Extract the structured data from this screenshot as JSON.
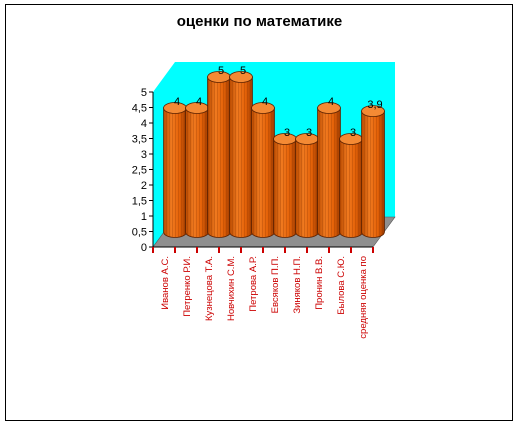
{
  "chart_data": {
    "type": "bar",
    "title": "оценки по математике",
    "categories": [
      "Иванов А.С.",
      "Петренко Р.И.",
      "Кузнецова Т.А.",
      "Новчихин С.М.",
      "Петрова А.Р.",
      "Евсяков П.П.",
      "Зиняков Н.П.",
      "Пронин В.В.",
      "Былова С.Ю.",
      "средняя оценка по"
    ],
    "values": [
      4,
      4,
      5,
      5,
      4,
      3,
      3,
      4,
      3,
      3.9
    ],
    "data_labels": [
      "4",
      "4",
      "5",
      "5",
      "4",
      "3",
      "3",
      "4",
      "3",
      "3,9"
    ],
    "y_ticks": [
      "0",
      "0,5",
      "1",
      "1,5",
      "2",
      "2,5",
      "3",
      "3,5",
      "4",
      "4,5",
      "5"
    ],
    "ylim": [
      0,
      5
    ],
    "xlabel": "",
    "ylabel": "",
    "style": "3d-cylinder",
    "colors": {
      "bar": "#e86a10",
      "bar_dark": "#a83f00",
      "back_wall": "#00ffff",
      "floor": "#8f8f8f",
      "category_text": "#cc0000"
    }
  }
}
